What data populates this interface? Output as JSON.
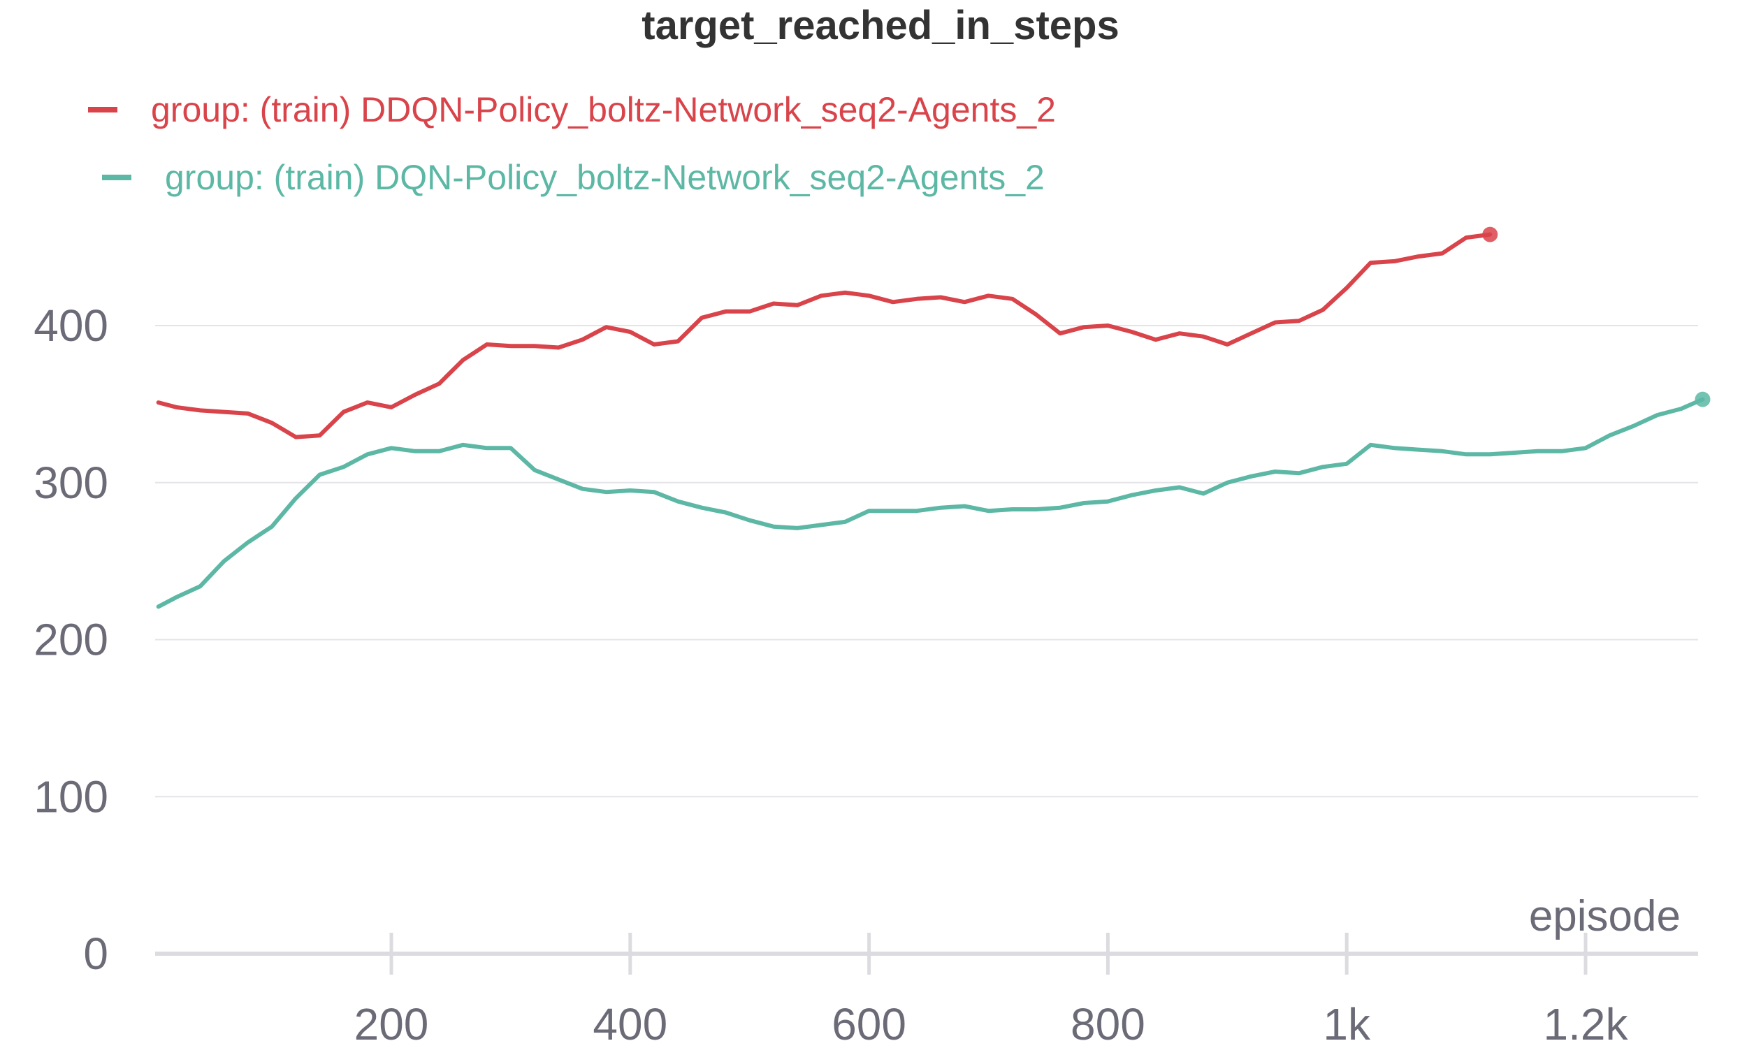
{
  "chart_data": {
    "type": "line",
    "title": "target_reached_in_steps",
    "xlabel": "episode",
    "ylabel": "",
    "xlim": [
      0,
      1300
    ],
    "ylim": [
      0,
      450
    ],
    "x_ticks": [
      {
        "value": 200,
        "label": "200"
      },
      {
        "value": 400,
        "label": "400"
      },
      {
        "value": 600,
        "label": "600"
      },
      {
        "value": 800,
        "label": "800"
      },
      {
        "value": 1000,
        "label": "1k"
      },
      {
        "value": 1200,
        "label": "1.2k"
      }
    ],
    "y_ticks": [
      {
        "value": 0,
        "label": "0"
      },
      {
        "value": 100,
        "label": "100"
      },
      {
        "value": 200,
        "label": "200"
      },
      {
        "value": 300,
        "label": "300"
      },
      {
        "value": 400,
        "label": "400"
      }
    ],
    "grid": true,
    "legend_position": "top-left",
    "series": [
      {
        "name": "group: (train) DDQN-Policy_boltz-Network_seq2-Agents_2",
        "color": "#d9434a",
        "x": [
          5,
          20,
          40,
          60,
          80,
          100,
          120,
          140,
          160,
          180,
          200,
          220,
          240,
          260,
          280,
          300,
          320,
          340,
          360,
          380,
          400,
          420,
          440,
          460,
          480,
          500,
          520,
          540,
          560,
          580,
          600,
          620,
          640,
          660,
          680,
          700,
          720,
          740,
          760,
          780,
          800,
          820,
          840,
          860,
          880,
          900,
          920,
          940,
          960,
          980,
          1000,
          1020,
          1040,
          1060,
          1080,
          1100,
          1120
        ],
        "y": [
          351,
          348,
          346,
          345,
          344,
          338,
          329,
          330,
          345,
          351,
          348,
          356,
          363,
          378,
          388,
          387,
          387,
          386,
          391,
          399,
          396,
          388,
          390,
          405,
          409,
          409,
          414,
          413,
          419,
          421,
          419,
          415,
          417,
          418,
          415,
          419,
          417,
          407,
          395,
          399,
          400,
          396,
          391,
          395,
          393,
          388,
          395,
          402,
          403,
          410,
          424,
          440,
          441,
          444,
          446,
          456,
          458
        ]
      },
      {
        "name": "group: (train) DQN-Policy_boltz-Network_seq2-Agents_2",
        "color": "#5cb8a5",
        "x": [
          5,
          20,
          40,
          60,
          80,
          100,
          120,
          140,
          160,
          180,
          200,
          220,
          240,
          260,
          280,
          300,
          320,
          340,
          360,
          380,
          400,
          420,
          440,
          460,
          480,
          500,
          520,
          540,
          560,
          580,
          600,
          620,
          640,
          660,
          680,
          700,
          720,
          740,
          760,
          780,
          800,
          820,
          840,
          860,
          880,
          900,
          920,
          940,
          960,
          980,
          1000,
          1020,
          1040,
          1060,
          1080,
          1100,
          1120,
          1140,
          1160,
          1180,
          1200,
          1220,
          1240,
          1260,
          1280,
          1298
        ],
        "y": [
          221,
          227,
          234,
          250,
          262,
          272,
          290,
          305,
          310,
          318,
          322,
          320,
          320,
          324,
          322,
          322,
          308,
          302,
          296,
          294,
          295,
          294,
          288,
          284,
          281,
          276,
          272,
          271,
          273,
          275,
          282,
          282,
          282,
          284,
          285,
          282,
          283,
          283,
          284,
          287,
          288,
          292,
          295,
          297,
          293,
          300,
          304,
          307,
          306,
          310,
          312,
          324,
          322,
          321,
          320,
          318,
          318,
          319,
          320,
          320,
          322,
          330,
          336,
          343,
          347,
          353
        ]
      }
    ]
  }
}
